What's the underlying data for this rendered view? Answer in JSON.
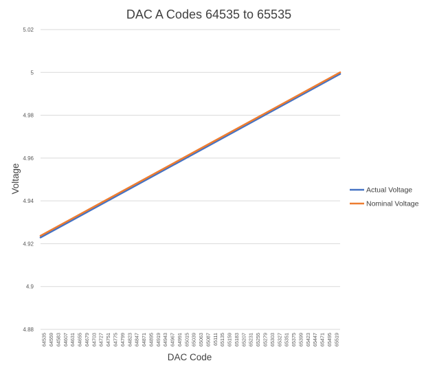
{
  "chart_data": {
    "type": "line",
    "title": "DAC A Codes 64535 to 65535",
    "xlabel": "DAC Code",
    "ylabel": "Voltage",
    "ylim": [
      4.88,
      5.02
    ],
    "yticks": [
      "4.88",
      "4.9",
      "4.92",
      "4.94",
      "4.96",
      "4.98",
      "5",
      "5.02"
    ],
    "x_categories": [
      "64535",
      "64559",
      "64583",
      "64607",
      "64631",
      "64655",
      "64679",
      "64703",
      "64727",
      "64751",
      "64775",
      "64799",
      "64823",
      "64847",
      "64871",
      "64895",
      "64919",
      "64943",
      "64967",
      "64991",
      "65015",
      "65039",
      "65063",
      "65087",
      "65111",
      "65135",
      "65159",
      "65183",
      "65207",
      "65231",
      "65255",
      "65279",
      "65303",
      "65327",
      "65351",
      "65375",
      "65399",
      "65423",
      "65447",
      "65471",
      "65495",
      "65519"
    ],
    "x_range": [
      64535,
      65535
    ],
    "grid": true,
    "legend_position": "right",
    "series": [
      {
        "name": "Actual Voltage",
        "color": "#4472c4",
        "x": [
          64535,
          65535
        ],
        "y": [
          4.9229,
          4.9993
        ]
      },
      {
        "name": "Nominal Voltage",
        "color": "#ed7d31",
        "x": [
          64535,
          65535
        ],
        "y": [
          4.9237,
          5.0
        ]
      }
    ]
  }
}
